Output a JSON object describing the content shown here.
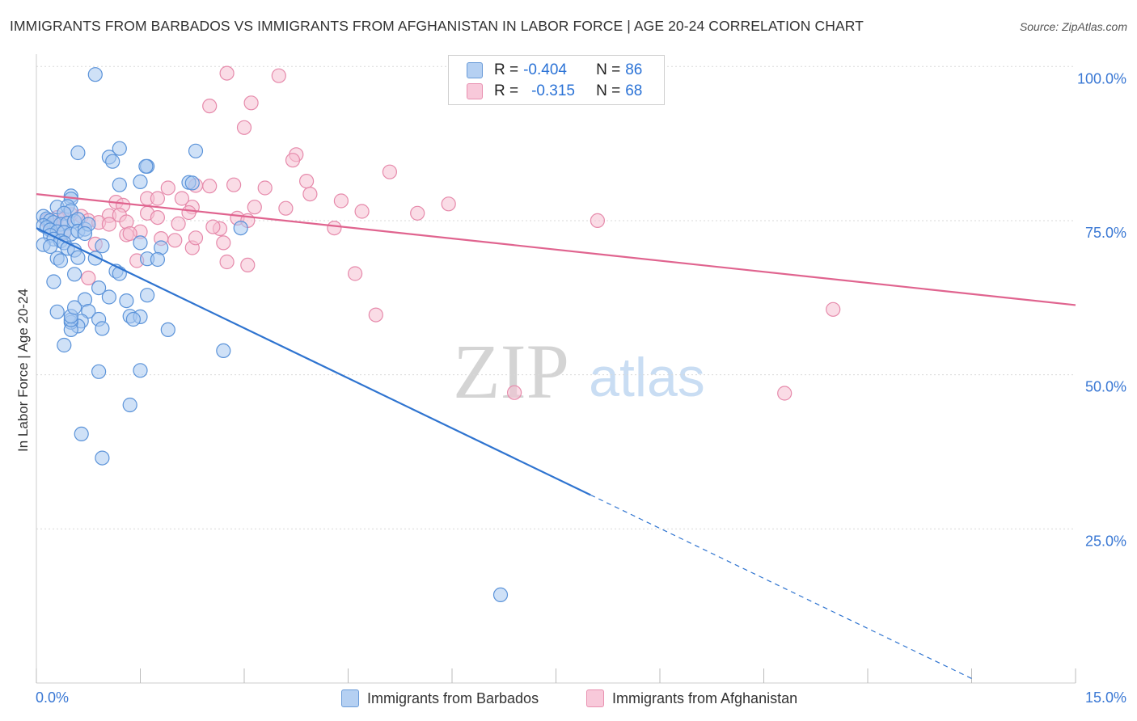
{
  "title": "IMMIGRANTS FROM BARBADOS VS IMMIGRANTS FROM AFGHANISTAN IN LABOR FORCE | AGE 20-24 CORRELATION CHART",
  "source": "Source: ZipAtlas.com",
  "watermark": {
    "zip": "ZIP",
    "atlas": "atlas"
  },
  "legend": {
    "rows": [
      {
        "r_label": "R =",
        "r_value": "-0.404",
        "n_label": "N =",
        "n_value": "86"
      },
      {
        "r_label": "R =",
        "r_value": "-0.315",
        "n_label": "N =",
        "n_value": "68"
      }
    ]
  },
  "colors": {
    "blue_fill": "#a8c8f0",
    "blue_stroke": "#5b93d9",
    "blue_line": "#2f74d0",
    "pink_fill": "#f5bfd2",
    "pink_stroke": "#e68aab",
    "pink_line": "#e0648f",
    "tick_text": "#3a78d4",
    "grid": "#d9d9d9"
  },
  "chart_data": {
    "type": "scatter",
    "title": "IMMIGRANTS FROM BARBADOS VS IMMIGRANTS FROM AFGHANISTAN IN LABOR FORCE | AGE 20-24 CORRELATION CHART",
    "xlabel": "",
    "ylabel": "In Labor Force | Age 20-24",
    "xlim": [
      0,
      15
    ],
    "ylim": [
      0,
      102
    ],
    "x_ticks": [
      0,
      1.5,
      3,
      4.5,
      6,
      7.5,
      9,
      10.5,
      12,
      13.5,
      15
    ],
    "x_tick_labels": {
      "min": "0.0%",
      "max": "15.0%"
    },
    "y_ticks": [
      {
        "value": 25,
        "label": "25.0%"
      },
      {
        "value": 50,
        "label": "50.0%"
      },
      {
        "value": 75,
        "label": "75.0%"
      },
      {
        "value": 100,
        "label": "100.0%"
      }
    ],
    "series": [
      {
        "name": "Immigrants from Barbados",
        "r": -0.404,
        "n": 86,
        "trend": {
          "x0": 0,
          "y0": 73.8,
          "x1": 8.0,
          "y1": 30.5,
          "dash_to_x": 13.5
        },
        "points": [
          [
            0.85,
            98.7
          ],
          [
            0.6,
            86.0
          ],
          [
            1.2,
            86.7
          ],
          [
            1.05,
            85.3
          ],
          [
            1.1,
            84.6
          ],
          [
            2.3,
            86.3
          ],
          [
            1.6,
            83.8
          ],
          [
            1.58,
            83.8
          ],
          [
            2.2,
            81.2
          ],
          [
            2.25,
            81.1
          ],
          [
            1.5,
            81.3
          ],
          [
            1.2,
            80.8
          ],
          [
            0.5,
            79.0
          ],
          [
            0.5,
            78.5
          ],
          [
            0.3,
            77.2
          ],
          [
            0.45,
            77.3
          ],
          [
            0.5,
            76.6
          ],
          [
            0.4,
            76.2
          ],
          [
            0.1,
            75.7
          ],
          [
            0.15,
            75.3
          ],
          [
            0.2,
            75.0
          ],
          [
            0.25,
            74.7
          ],
          [
            0.35,
            74.4
          ],
          [
            0.45,
            74.6
          ],
          [
            0.55,
            74.9
          ],
          [
            0.6,
            75.2
          ],
          [
            0.1,
            74.2
          ],
          [
            0.15,
            73.9
          ],
          [
            0.2,
            73.5
          ],
          [
            0.3,
            73.2
          ],
          [
            0.4,
            73.1
          ],
          [
            0.5,
            72.8
          ],
          [
            0.6,
            73.3
          ],
          [
            0.7,
            73.6
          ],
          [
            0.75,
            74.4
          ],
          [
            0.2,
            72.6
          ],
          [
            0.25,
            72.0
          ],
          [
            0.35,
            71.7
          ],
          [
            0.4,
            71.4
          ],
          [
            0.1,
            71.1
          ],
          [
            0.2,
            70.8
          ],
          [
            0.45,
            70.5
          ],
          [
            0.55,
            70.2
          ],
          [
            0.7,
            72.9
          ],
          [
            0.95,
            70.9
          ],
          [
            0.6,
            69.0
          ],
          [
            0.3,
            68.9
          ],
          [
            0.35,
            68.5
          ],
          [
            0.85,
            68.9
          ],
          [
            1.5,
            71.4
          ],
          [
            1.8,
            70.6
          ],
          [
            2.95,
            73.8
          ],
          [
            1.6,
            68.8
          ],
          [
            1.15,
            66.8
          ],
          [
            1.2,
            66.4
          ],
          [
            0.55,
            66.3
          ],
          [
            0.25,
            65.1
          ],
          [
            0.9,
            64.1
          ],
          [
            0.7,
            62.2
          ],
          [
            1.05,
            62.6
          ],
          [
            1.3,
            62.0
          ],
          [
            1.6,
            62.9
          ],
          [
            0.75,
            60.3
          ],
          [
            1.35,
            59.5
          ],
          [
            1.5,
            59.4
          ],
          [
            1.4,
            59.0
          ],
          [
            0.9,
            59.0
          ],
          [
            0.65,
            58.7
          ],
          [
            0.6,
            57.9
          ],
          [
            0.5,
            58.5
          ],
          [
            0.5,
            57.3
          ],
          [
            0.5,
            58.9
          ],
          [
            0.5,
            59.5
          ],
          [
            0.95,
            57.5
          ],
          [
            1.9,
            57.3
          ],
          [
            0.55,
            60.9
          ],
          [
            0.4,
            54.8
          ],
          [
            2.7,
            53.9
          ],
          [
            1.5,
            50.7
          ],
          [
            0.9,
            50.5
          ],
          [
            1.35,
            45.1
          ],
          [
            0.65,
            40.4
          ],
          [
            0.95,
            36.5
          ],
          [
            6.7,
            14.3
          ],
          [
            0.3,
            60.2
          ],
          [
            1.75,
            68.7
          ]
        ]
      },
      {
        "name": "Immigrants from Afghanistan",
        "r": -0.315,
        "n": 68,
        "trend": {
          "x0": 0,
          "y0": 79.3,
          "x1": 15,
          "y1": 61.3
        },
        "points": [
          [
            2.75,
            98.9
          ],
          [
            3.5,
            98.5
          ],
          [
            2.5,
            93.6
          ],
          [
            3.1,
            94.1
          ],
          [
            3.0,
            90.1
          ],
          [
            3.75,
            85.7
          ],
          [
            3.7,
            84.8
          ],
          [
            5.1,
            82.9
          ],
          [
            3.9,
            81.4
          ],
          [
            2.85,
            80.8
          ],
          [
            2.5,
            80.6
          ],
          [
            1.9,
            80.3
          ],
          [
            2.3,
            80.7
          ],
          [
            3.3,
            80.3
          ],
          [
            3.95,
            79.3
          ],
          [
            1.6,
            78.6
          ],
          [
            1.75,
            78.6
          ],
          [
            2.1,
            78.6
          ],
          [
            4.4,
            78.2
          ],
          [
            5.95,
            77.7
          ],
          [
            1.15,
            78.0
          ],
          [
            1.25,
            77.5
          ],
          [
            2.25,
            77.2
          ],
          [
            3.15,
            77.2
          ],
          [
            3.6,
            77.0
          ],
          [
            4.7,
            76.5
          ],
          [
            5.5,
            76.2
          ],
          [
            2.2,
            76.3
          ],
          [
            1.6,
            76.2
          ],
          [
            0.5,
            76.0
          ],
          [
            0.65,
            75.7
          ],
          [
            1.05,
            75.8
          ],
          [
            1.2,
            75.9
          ],
          [
            0.3,
            75.5
          ],
          [
            0.4,
            75.2
          ],
          [
            0.75,
            75.0
          ],
          [
            0.9,
            74.7
          ],
          [
            1.3,
            74.8
          ],
          [
            1.05,
            74.4
          ],
          [
            0.15,
            75.0
          ],
          [
            0.25,
            74.2
          ],
          [
            1.75,
            75.5
          ],
          [
            2.05,
            74.5
          ],
          [
            2.65,
            73.7
          ],
          [
            2.55,
            74.0
          ],
          [
            2.9,
            75.4
          ],
          [
            3.05,
            75.0
          ],
          [
            4.3,
            73.8
          ],
          [
            8.1,
            75.0
          ],
          [
            1.5,
            73.2
          ],
          [
            1.3,
            72.7
          ],
          [
            1.35,
            72.9
          ],
          [
            1.8,
            72.1
          ],
          [
            2.0,
            71.8
          ],
          [
            2.7,
            71.4
          ],
          [
            2.25,
            70.6
          ],
          [
            0.85,
            71.2
          ],
          [
            2.3,
            72.2
          ],
          [
            1.45,
            68.5
          ],
          [
            2.75,
            68.3
          ],
          [
            3.05,
            67.8
          ],
          [
            4.6,
            66.4
          ],
          [
            0.75,
            65.7
          ],
          [
            4.9,
            59.7
          ],
          [
            11.5,
            60.6
          ],
          [
            6.9,
            47.1
          ],
          [
            10.8,
            47.0
          ],
          [
            0.4,
            73.0
          ]
        ]
      }
    ]
  }
}
